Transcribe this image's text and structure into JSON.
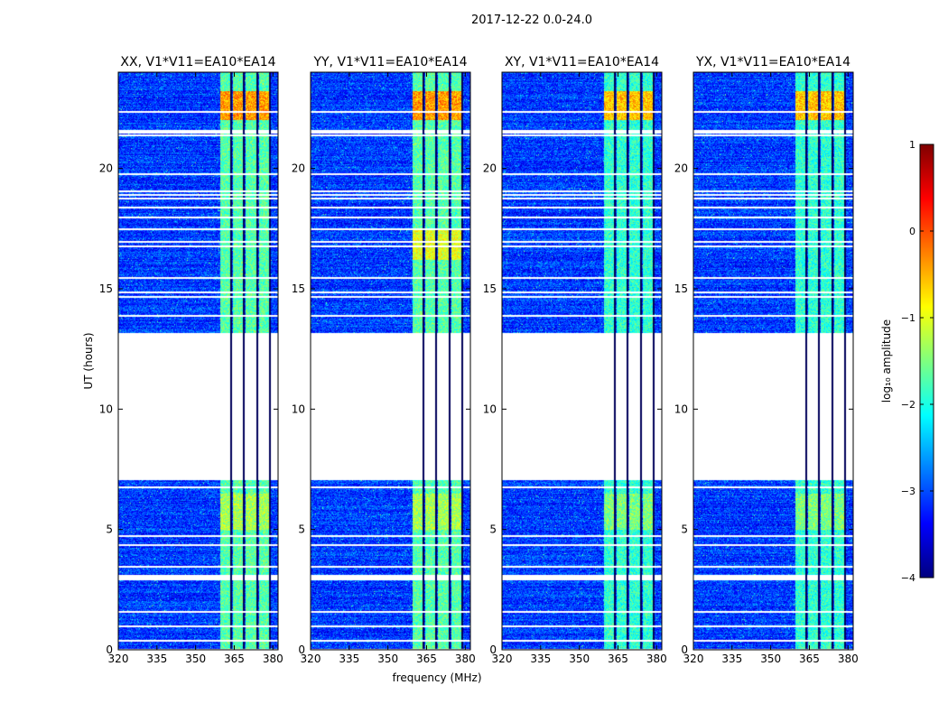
{
  "figure": {
    "suptitle": "2017-12-22 0.0-24.0",
    "xlabel": "frequency (MHz)",
    "ylabel": "UT (hours)"
  },
  "colors": {
    "colormap": [
      "#00007f",
      "#0000ff",
      "#007fff",
      "#00ffff",
      "#7fff7f",
      "#ffff00",
      "#ff7f00",
      "#ff0000",
      "#7f0000"
    ],
    "gap": "#ffffff",
    "axis": "#000000"
  },
  "chart_data": {
    "type": "heatmap",
    "panels": [
      {
        "title": "XX, V1*V11=EA10*EA14",
        "pol": "XX"
      },
      {
        "title": "YY, V1*V11=EA10*EA14",
        "pol": "YY"
      },
      {
        "title": "XY, V1*V11=EA10*EA14",
        "pol": "XY"
      },
      {
        "title": "YX, V1*V11=EA10*EA14",
        "pol": "YX"
      }
    ],
    "xlim": [
      320,
      382
    ],
    "xticks": [
      320,
      335,
      350,
      365,
      380
    ],
    "ylim": [
      0,
      24
    ],
    "yticks": [
      0,
      5,
      10,
      15,
      20
    ],
    "colorbar": {
      "label": "log₁₀ amplitude",
      "range": [
        -4,
        1
      ],
      "ticks": [
        1,
        0,
        -1,
        -2,
        -3,
        -4
      ]
    },
    "bright_bands_mhz": [
      [
        359.5,
        363.5
      ],
      [
        364.5,
        368.5
      ],
      [
        369.5,
        373.5
      ],
      [
        374.5,
        378.5
      ]
    ],
    "data_gaps_hours": [
      [
        2.9,
        3.1
      ],
      [
        6.7,
        6.8
      ],
      [
        7.05,
        13.15
      ],
      [
        21.45,
        21.6
      ]
    ],
    "flagged_rows_hours": [
      0.05,
      0.4,
      1.0,
      1.6,
      3.5,
      4.4,
      4.75,
      13.9,
      14.7,
      14.9,
      15.5,
      16.8,
      17.0,
      17.5,
      18.0,
      18.4,
      18.8,
      18.95,
      19.1,
      19.8,
      21.4,
      22.4
    ]
  }
}
